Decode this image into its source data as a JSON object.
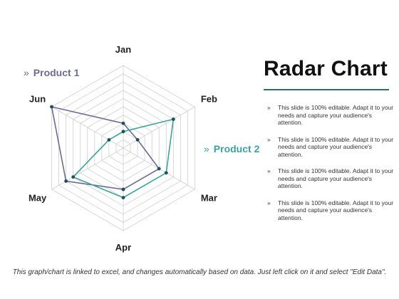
{
  "chart_data": {
    "type": "radar",
    "categories": [
      "Jan",
      "Feb",
      "Mar",
      "Apr",
      "May",
      "Jun"
    ],
    "series": [
      {
        "name": "Product 1",
        "color": "#6b6b95",
        "values": [
          3,
          2,
          5,
          5,
          8,
          10
        ]
      },
      {
        "name": "Product 2",
        "color": "#3ba39c",
        "values": [
          2,
          7,
          6,
          6,
          7,
          2
        ]
      }
    ],
    "rmax": 10,
    "rings": 10,
    "grid": true
  },
  "legend": {
    "chevron": "»",
    "product1": "Product 1",
    "product2": "Product 2"
  },
  "title": "Radar Chart",
  "accent_color": "#2f6f73",
  "bullets": [
    "This slide is 100% editable. Adapt it to your needs and capture your audience's attention.",
    "This slide is 100% editable. Adapt it to your needs and capture your audience's attention.",
    "This slide is 100% editable. Adapt it to your needs and capture your audience's attention.",
    "This slide is 100% editable. Adapt it to your needs and capture your audience's attention."
  ],
  "footer": "This graph/chart is linked to excel, and changes automatically based on data. Just left click on it and select \"Edit Data\"."
}
